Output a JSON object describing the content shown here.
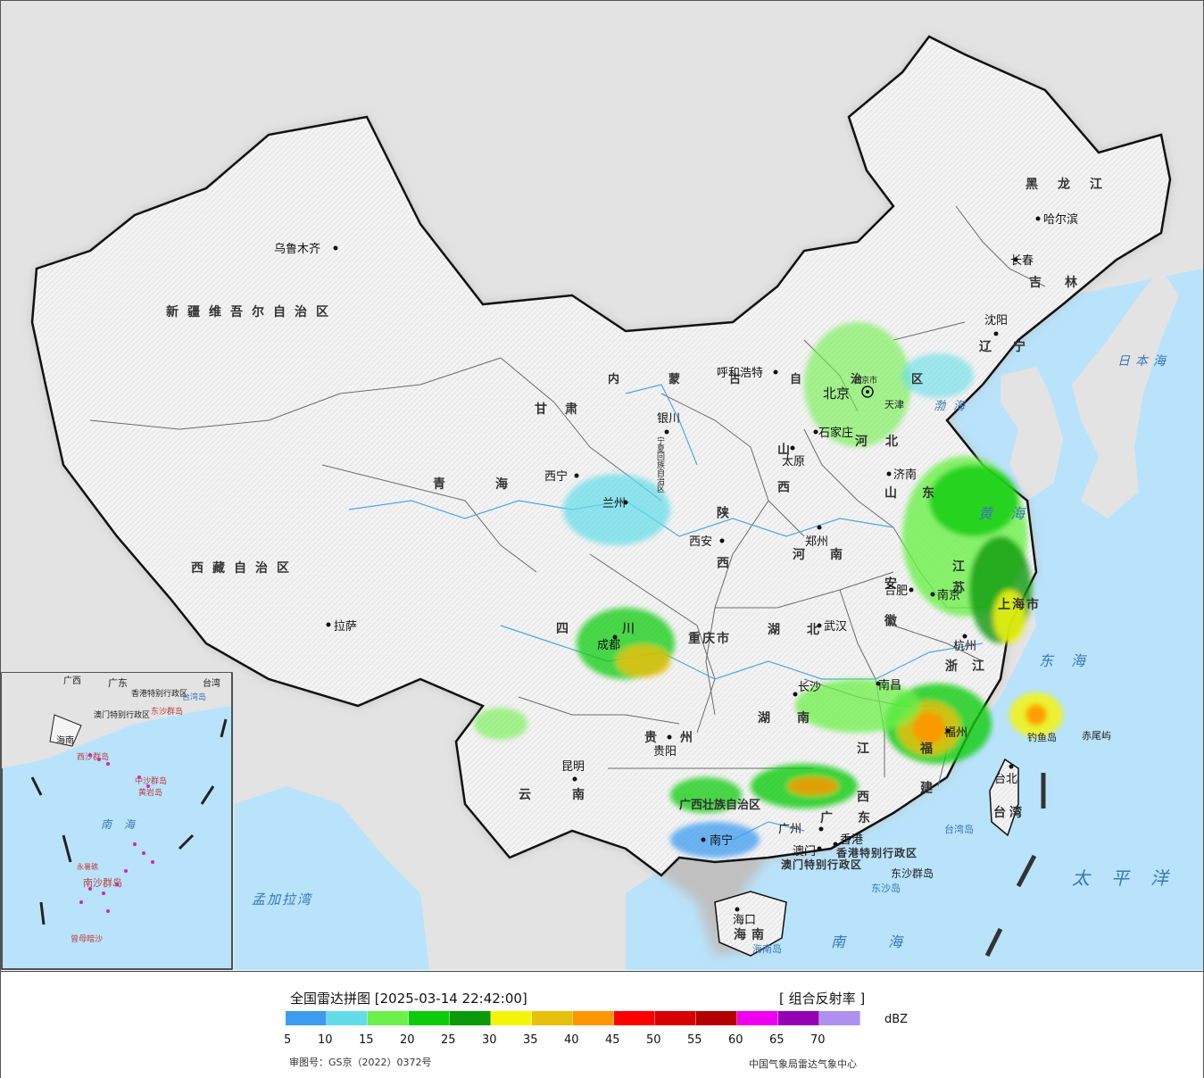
{
  "map": {
    "provinces": {
      "xinjiang": "新疆维吾尔自治区",
      "xizang": "西藏自治区",
      "qinghai": "青海",
      "gansu": "甘肃",
      "neimenggu": "内蒙古自治区",
      "heilongjiang": "黑龙江",
      "jilin": "吉林",
      "liaoning": "辽宁",
      "hebei": "河北",
      "shanxi": "山西",
      "shaanxi": "陕西",
      "henan": "河南",
      "shandong": "山东",
      "jiangsu": "江苏",
      "anhui": "安徽",
      "hubei": "湖北",
      "hunan": "湖南",
      "sichuan": "四川",
      "guizhou": "贵州",
      "yunnan": "云南",
      "guangxi": "广西壮族自治区",
      "guangdong": "广东",
      "jiangxi": "江西",
      "zhejiang": "浙江",
      "fujian": "福建",
      "hainan": "海南",
      "taiwan": "台湾",
      "ningxia": "宁夏回族自治区",
      "chongqing": "重庆市",
      "shanghai": "上海市",
      "tianjin": "天津",
      "hongkong": "香港特别行政区",
      "macau": "澳门特别行政区"
    },
    "cities": {
      "urumqi": "乌鲁木齐",
      "lhasa": "拉萨",
      "xining": "西宁",
      "lanzhou": "兰州",
      "yinchuan": "银川",
      "hohhot": "呼和浩特",
      "beijing": "北京",
      "beijing_city": "北京市",
      "shijiazhuang": "石家庄",
      "taiyuan": "太原",
      "xian": "西安",
      "zhengzhou": "郑州",
      "jinan": "济南",
      "hefei": "合肥",
      "nanjing": "南京",
      "wuhan": "武汉",
      "hangzhou": "杭州",
      "nanchang": "南昌",
      "changsha": "长沙",
      "chengdu": "成都",
      "guiyang": "贵阳",
      "kunming": "昆明",
      "nanning": "南宁",
      "guangzhou": "广州",
      "hongkong": "香港",
      "macau": "澳门",
      "fuzhou": "福州",
      "taibei": "台北",
      "haikou": "海口",
      "shenyang": "沈阳",
      "changchun": "长春",
      "harbin": "哈尔滨"
    },
    "seas": {
      "bohai": "渤海",
      "huanghai": "黄海",
      "donghai": "东海",
      "nanhai": "南海",
      "japan_sea": "日本海",
      "pacific": "太平洋",
      "bengal": "孟加拉湾"
    },
    "islands": {
      "taiwan_island": "台湾岛",
      "hainan_island": "海南岛",
      "dongsha": "东沙群岛",
      "dongsha_island": "东沙岛",
      "diaoyu": "钓鱼岛",
      "chiwei": "赤尾屿"
    },
    "inset": {
      "guangdong": "广东",
      "guangxi": "广西",
      "hainan": "海南",
      "taiwan": "台湾",
      "hongkong": "香港特别行政区",
      "macau": "澳门特别行政区",
      "taiwan_island": "台湾岛",
      "dongsha": "东沙群岛",
      "xisha": "西沙群岛",
      "zhongsha": "中沙群岛",
      "huangyan": "黄岩岛",
      "nansha": "南沙群岛",
      "yongshu": "永暑礁",
      "zengmu": "曾母暗沙",
      "south_sea": "南海"
    }
  },
  "legend": {
    "title": "全国雷达拼图 [2025-03-14 22:42:00]",
    "product": "[ 组合反射率 ]",
    "unit": "dBZ",
    "ticks": [
      "5",
      "10",
      "15",
      "20",
      "25",
      "30",
      "35",
      "40",
      "45",
      "50",
      "55",
      "60",
      "65",
      "70"
    ],
    "colors": [
      "#3d9cf0",
      "#62dde8",
      "#6cf04a",
      "#0acc0a",
      "#0a9a0a",
      "#f5f50a",
      "#e6c00a",
      "#ff9600",
      "#ff0000",
      "#d80000",
      "#b40000",
      "#f000f0",
      "#9600b4",
      "#ad90f0"
    ],
    "review_no": "审图号：GS京（2022）0372号",
    "credit": "中国气象局雷达气象中心"
  }
}
